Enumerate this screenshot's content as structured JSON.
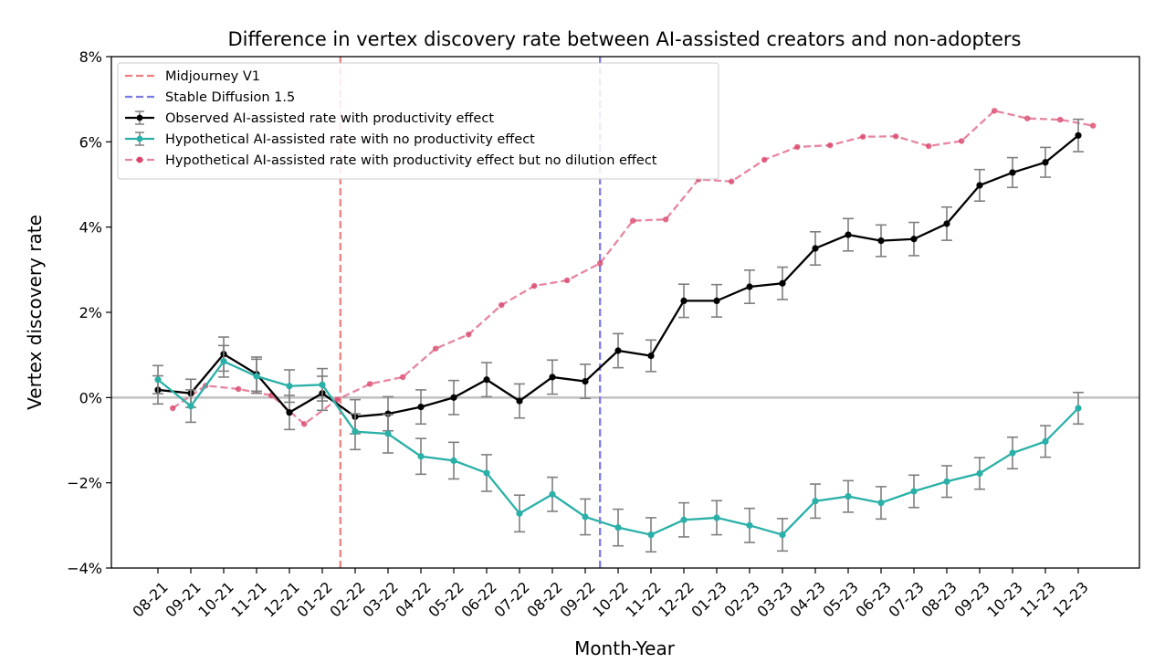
{
  "chart_data": {
    "type": "line",
    "title": "Difference in vertex discovery rate between AI-assisted creators and non-adopters",
    "xlabel": "Month-Year",
    "ylabel": "Vertex discovery rate",
    "categories": [
      "08-21",
      "09-21",
      "10-21",
      "11-21",
      "12-21",
      "01-22",
      "02-22",
      "03-22",
      "04-22",
      "05-22",
      "06-22",
      "07-22",
      "08-22",
      "09-22",
      "10-22",
      "11-22",
      "12-22",
      "01-23",
      "02-23",
      "03-23",
      "04-23",
      "05-23",
      "06-23",
      "07-23",
      "08-23",
      "09-23",
      "10-23",
      "11-23",
      "12-23"
    ],
    "ylim": [
      -4,
      8
    ],
    "yticks": [
      -4,
      -2,
      0,
      2,
      4,
      6,
      8
    ],
    "ytick_labels": [
      "−4%",
      "−2%",
      "0%",
      "2%",
      "4%",
      "6%",
      "8%"
    ],
    "zero_line": true,
    "vlines": [
      {
        "name": "Midjourney V1",
        "x": 5.55,
        "color": "#f08080"
      },
      {
        "name": "Stable Diffusion 1.5",
        "x": 13.45,
        "color": "#7b7be8"
      }
    ],
    "series": [
      {
        "name": "Observed AI-assisted rate with productivity effect",
        "color": "#000000",
        "style": "solid",
        "x_offset": 0,
        "error_bars": true,
        "values": [
          0.18,
          0.1,
          1.02,
          0.55,
          -0.35,
          0.1,
          -0.45,
          -0.38,
          -0.22,
          0.0,
          0.42,
          -0.08,
          0.48,
          0.38,
          1.1,
          0.98,
          2.27,
          2.27,
          2.6,
          2.68,
          3.5,
          3.82,
          3.68,
          3.72,
          4.08,
          4.98,
          5.28,
          5.52,
          6.15
        ],
        "errors": [
          0.33,
          0.33,
          0.4,
          0.4,
          0.4,
          0.4,
          0.4,
          0.4,
          0.4,
          0.4,
          0.4,
          0.4,
          0.4,
          0.4,
          0.4,
          0.37,
          0.39,
          0.38,
          0.39,
          0.38,
          0.39,
          0.38,
          0.37,
          0.39,
          0.39,
          0.37,
          0.35,
          0.35,
          0.38
        ]
      },
      {
        "name": "Hypothetical AI-assisted rate with no productivity effect",
        "color": "#2ab0a8",
        "style": "solid",
        "x_offset": 0,
        "error_bars": true,
        "values": [
          0.42,
          -0.2,
          0.85,
          0.5,
          0.27,
          0.3,
          -0.8,
          -0.85,
          -1.38,
          -1.48,
          -1.77,
          -2.72,
          -2.27,
          -2.8,
          -3.05,
          -3.22,
          -2.87,
          -2.82,
          -3.0,
          -3.22,
          -2.43,
          -2.32,
          -2.47,
          -2.2,
          -1.97,
          -1.78,
          -1.3,
          -1.03,
          -0.25
        ],
        "errors": [
          0.33,
          0.38,
          0.37,
          0.4,
          0.38,
          0.38,
          0.42,
          0.45,
          0.42,
          0.43,
          0.43,
          0.43,
          0.4,
          0.42,
          0.43,
          0.4,
          0.4,
          0.4,
          0.4,
          0.38,
          0.4,
          0.37,
          0.38,
          0.38,
          0.37,
          0.37,
          0.37,
          0.37,
          0.37
        ]
      },
      {
        "name": "Hypothetical AI-assisted rate with productivity effect but no dilution effect",
        "color": "#d9456b",
        "style": "dashed",
        "x_offset": 0.45,
        "error_bars": false,
        "values": [
          -0.25,
          0.28,
          0.2,
          0.05,
          -0.62,
          -0.05,
          0.32,
          0.48,
          1.15,
          1.48,
          2.17,
          2.62,
          2.75,
          3.15,
          4.15,
          4.18,
          5.12,
          5.07,
          5.58,
          5.88,
          5.92,
          6.12,
          6.13,
          5.9,
          6.02,
          6.73,
          6.55,
          6.52,
          6.38
        ]
      }
    ],
    "legend": {
      "position": "top-left",
      "entries": [
        "Midjourney V1",
        "Stable Diffusion 1.5",
        "Observed AI-assisted rate with productivity effect",
        "Hypothetical AI-assisted rate with no productivity effect",
        "Hypothetical AI-assisted rate with productivity effect but no dilution effect"
      ]
    }
  }
}
